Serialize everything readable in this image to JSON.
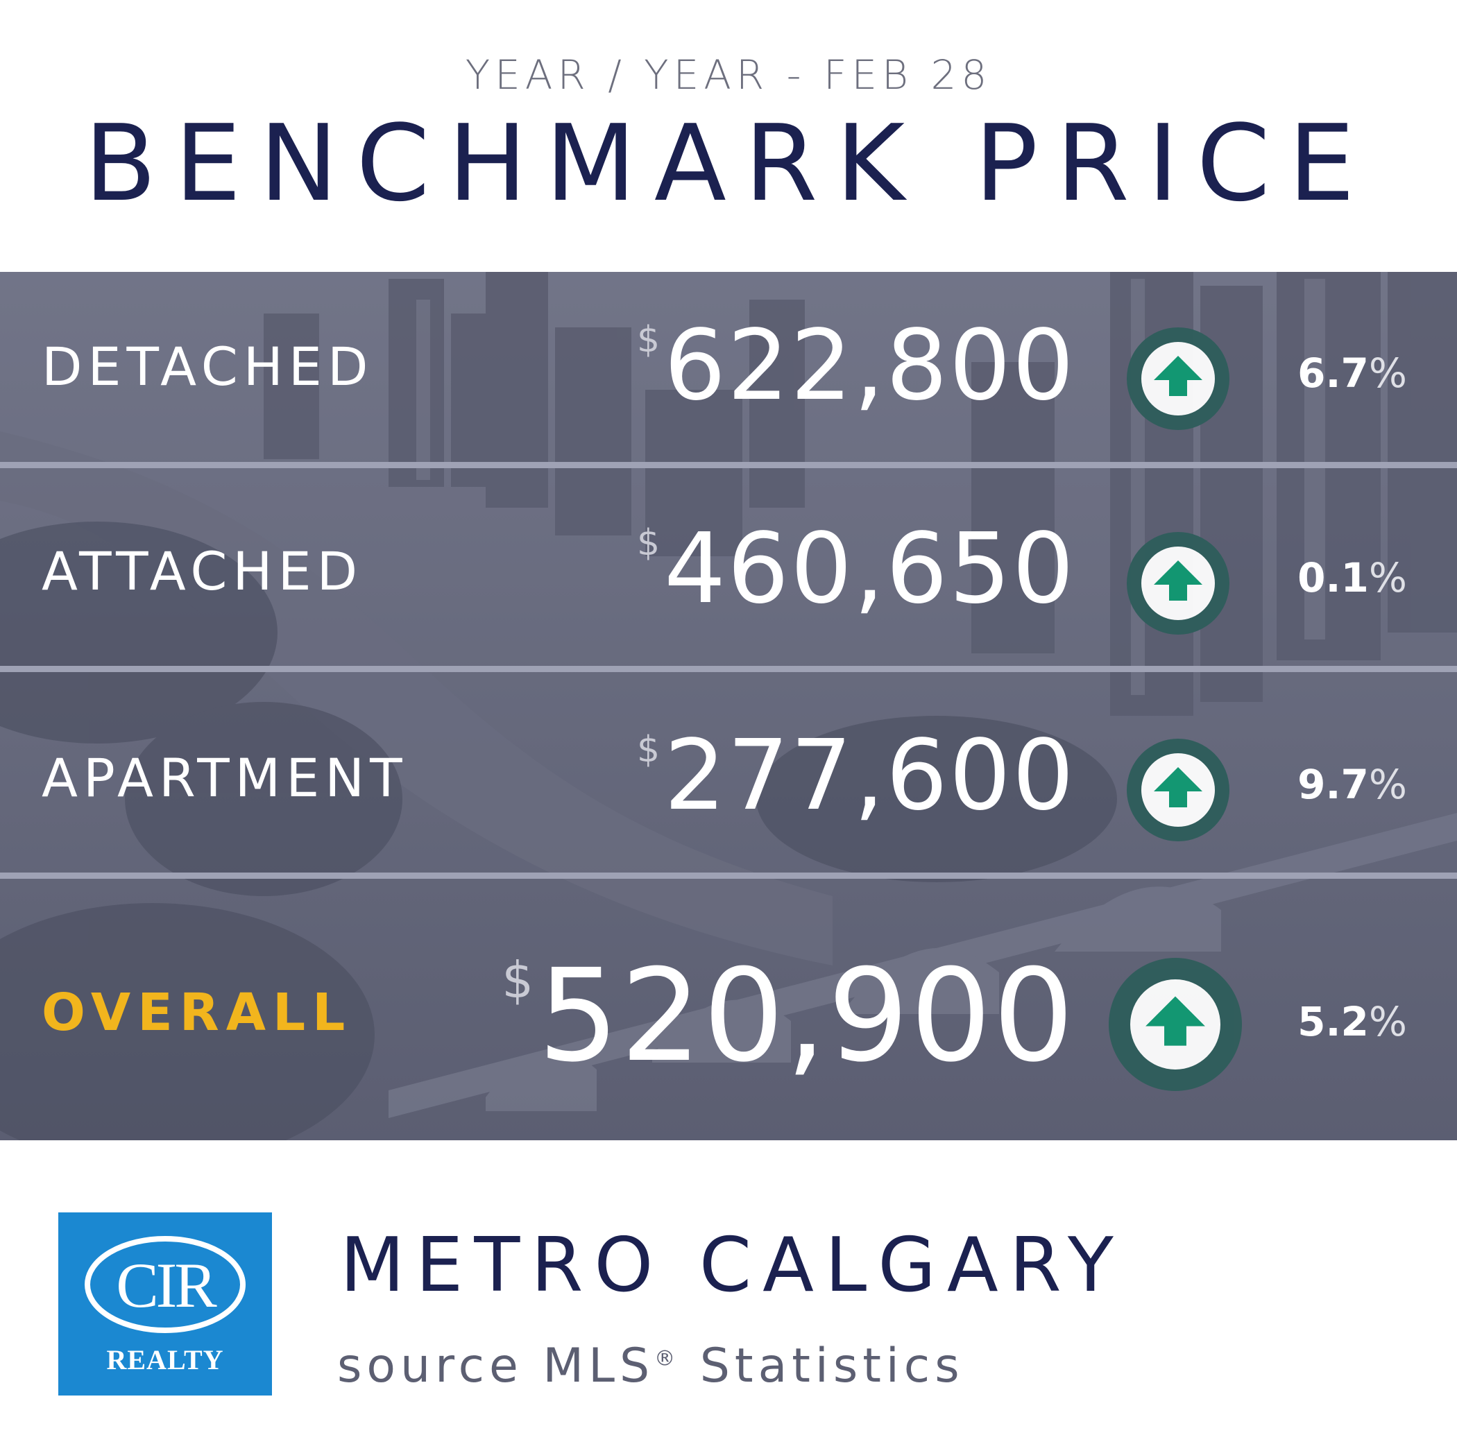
{
  "header": {
    "subtitle": "YEAR / YEAR - FEB 28",
    "title": "BENCHMARK PRICE"
  },
  "rows": [
    {
      "label": "DETACHED",
      "currency": "$",
      "price": "622,800",
      "change": "6.7",
      "percent_sign": "%",
      "direction_icon": "up-arrow-icon"
    },
    {
      "label": "ATTACHED",
      "currency": "$",
      "price": "460,650",
      "change": "0.1",
      "percent_sign": "%",
      "direction_icon": "up-arrow-icon"
    },
    {
      "label": "APARTMENT",
      "currency": "$",
      "price": "277,600",
      "change": "9.7",
      "percent_sign": "%",
      "direction_icon": "up-arrow-icon"
    },
    {
      "label": "OVERALL",
      "currency": "$",
      "price": "520,900",
      "change": "5.2",
      "percent_sign": "%",
      "direction_icon": "up-arrow-icon"
    }
  ],
  "footer": {
    "region": "METRO CALGARY",
    "source_prefix": "source MLS",
    "source_mark": "®",
    "source_suffix": " Statistics",
    "logo_monogram": "CIR",
    "logo_text": "REALTY"
  },
  "colors": {
    "navy": "#1b2150",
    "overall_gold": "#f2b51d",
    "arrow_green": "#0f9a72",
    "logo_blue": "#1b88d1"
  }
}
